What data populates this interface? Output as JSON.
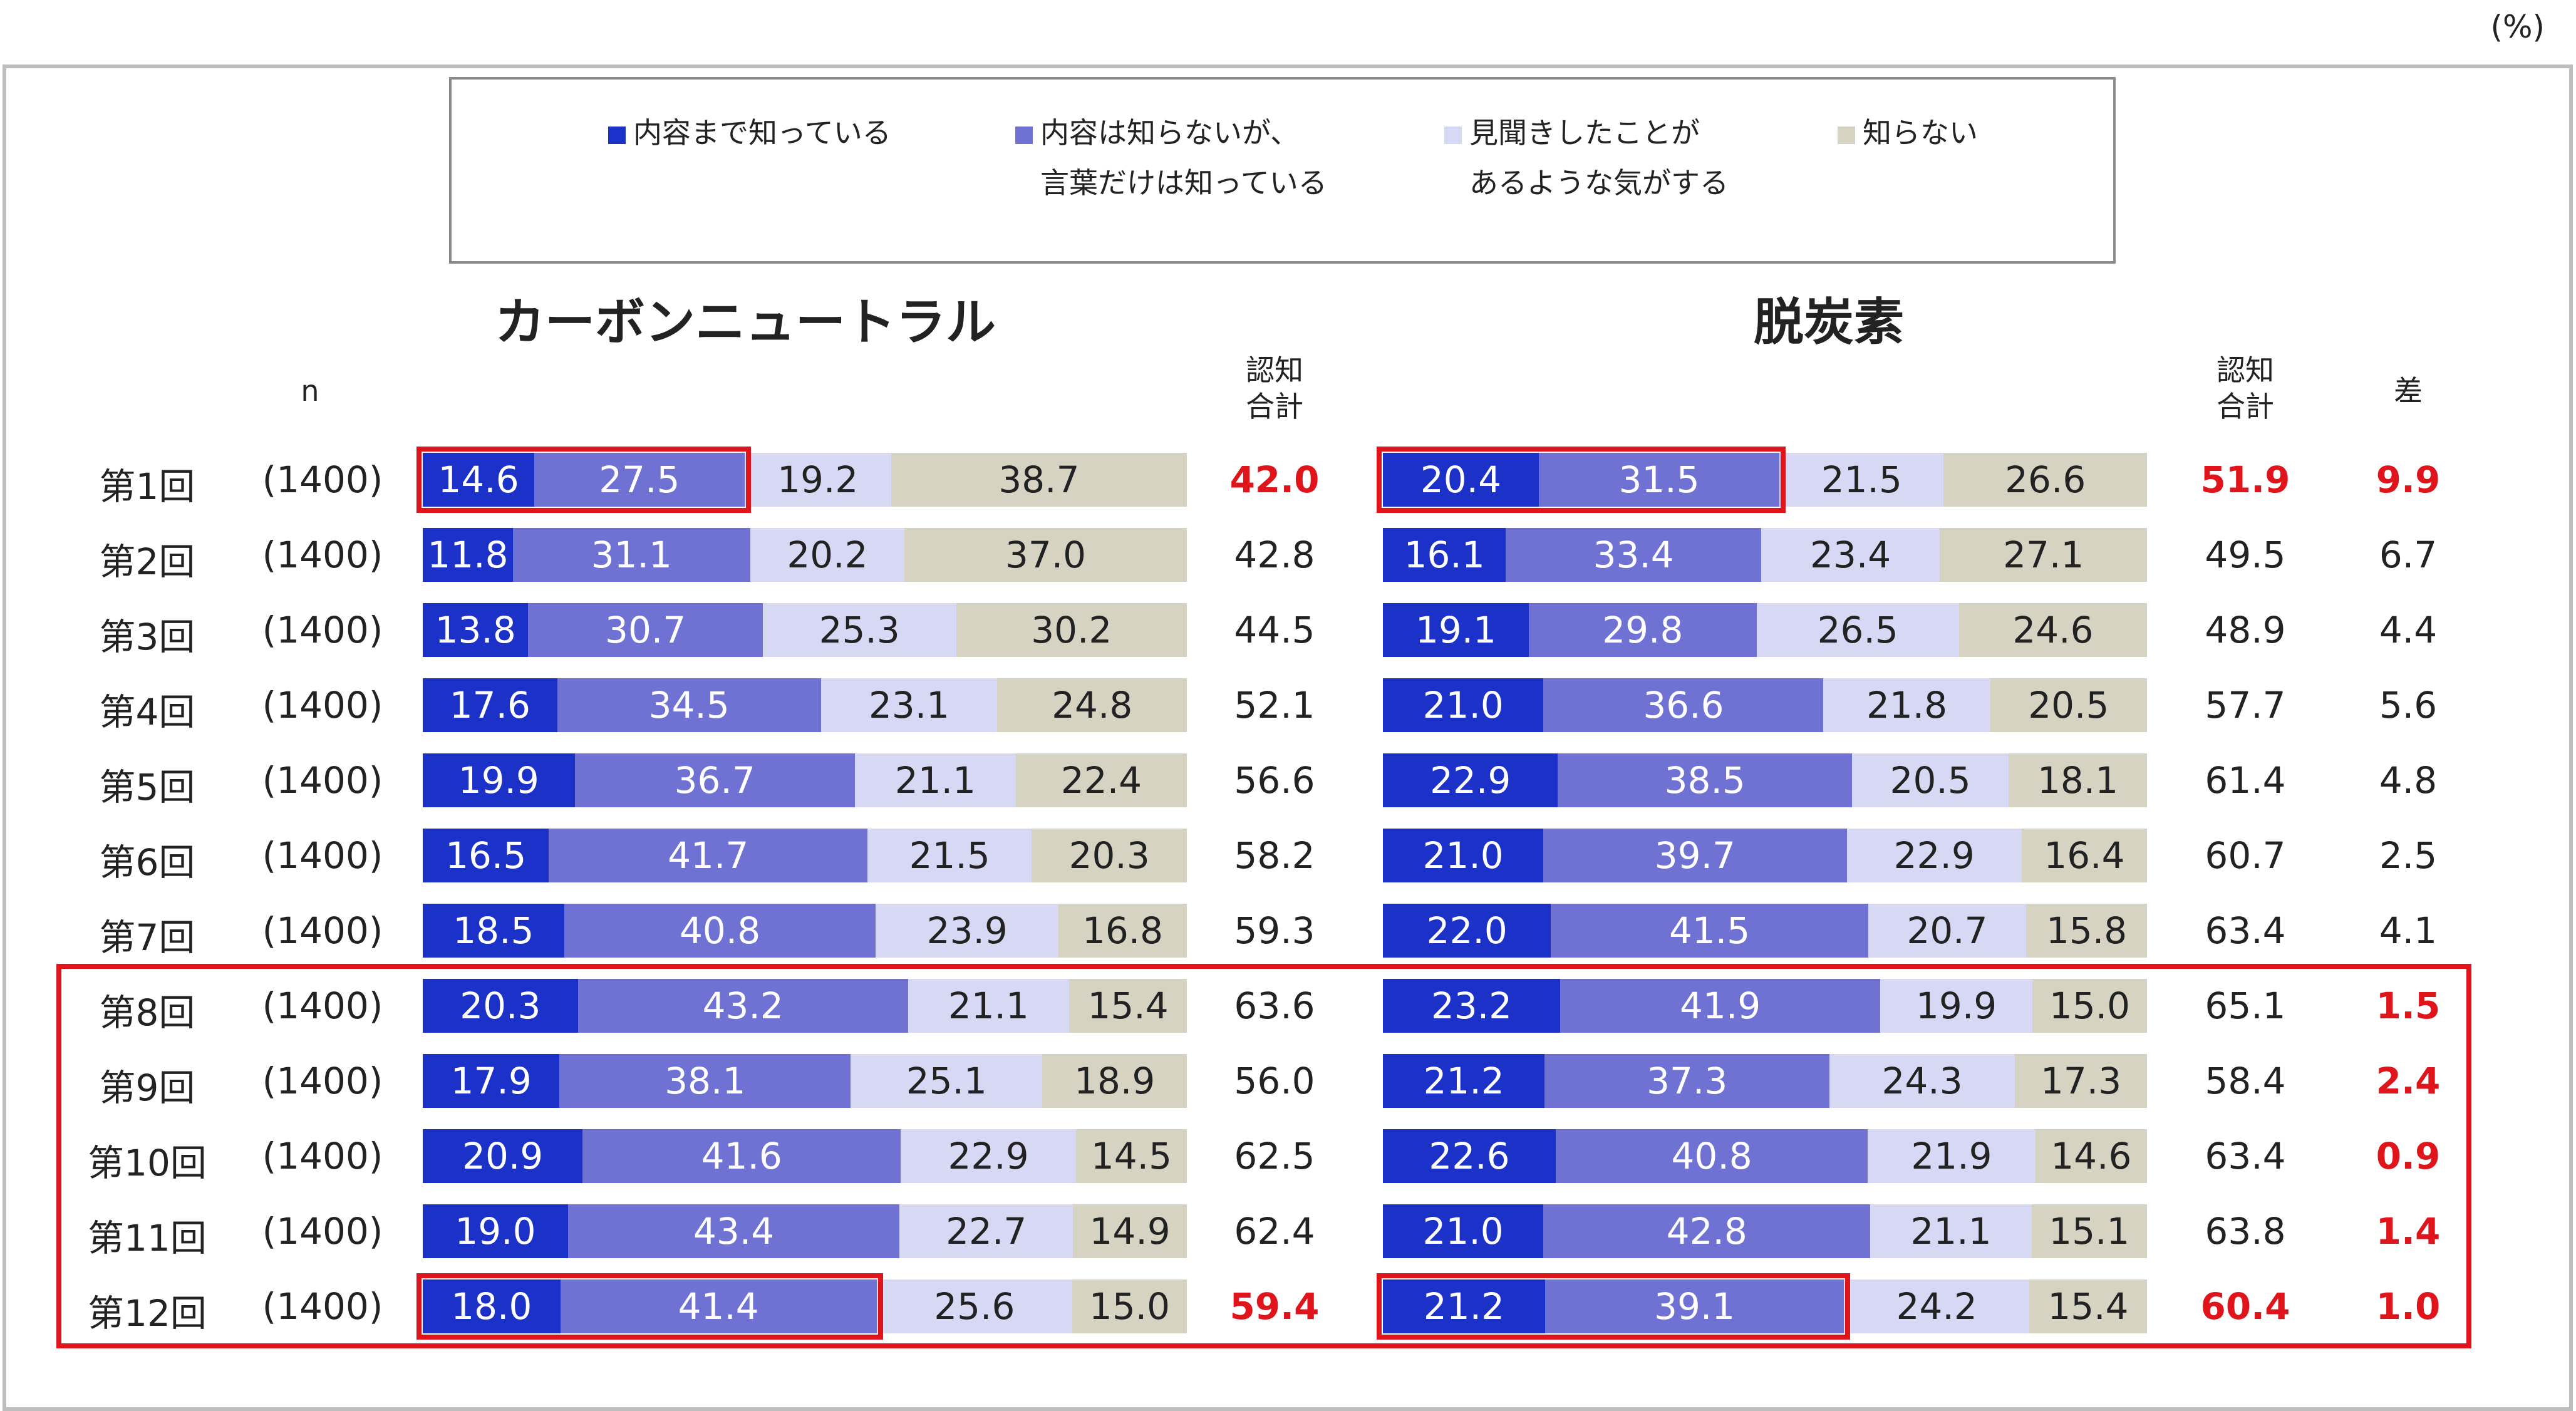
{
  "unit_label": "(%)",
  "legend": [
    {
      "line1": "内容まで知っている",
      "line2": "",
      "color": "#1c31c8"
    },
    {
      "line1": "内容は知らないが、",
      "line2": "言葉だけは知っている",
      "color": "#6f72d3"
    },
    {
      "line1": "見聞きしたことが",
      "line2": "あるような気がする",
      "color": "#d7d8f3"
    },
    {
      "line1": "知らない",
      "line2": "",
      "color": "#d6d3c3"
    }
  ],
  "headers": {
    "n": "n",
    "left_title": "カーボンニュートラル",
    "right_title": "脱炭素",
    "recog_left": "認知合計",
    "recog_right": "認知合計",
    "diff": "差"
  },
  "chart_data": {
    "type": "bar",
    "stacked": true,
    "orientation": "horizontal",
    "unit": "%",
    "categories": [
      "第1回",
      "第2回",
      "第3回",
      "第4回",
      "第5回",
      "第6回",
      "第7回",
      "第8回",
      "第9回",
      "第10回",
      "第11回",
      "第12回"
    ],
    "n": [
      "(1400)",
      "(1400)",
      "(1400)",
      "(1400)",
      "(1400)",
      "(1400)",
      "(1400)",
      "(1400)",
      "(1400)",
      "(1400)",
      "(1400)",
      "(1400)"
    ],
    "panels": [
      {
        "title": "カーボンニュートラル",
        "series": [
          {
            "name": "内容まで知っている",
            "values": [
              14.6,
              11.8,
              13.8,
              17.6,
              19.9,
              16.5,
              18.5,
              20.3,
              17.9,
              20.9,
              19.0,
              18.0
            ]
          },
          {
            "name": "内容は知らないが、言葉だけは知っている",
            "values": [
              27.5,
              31.1,
              30.7,
              34.5,
              36.7,
              41.7,
              40.8,
              43.2,
              38.1,
              41.6,
              43.4,
              41.4
            ]
          },
          {
            "name": "見聞きしたことがあるような気がする",
            "values": [
              19.2,
              20.2,
              25.3,
              23.1,
              21.1,
              21.5,
              23.9,
              21.1,
              25.1,
              22.9,
              22.7,
              25.6
            ]
          },
          {
            "name": "知らない",
            "values": [
              38.7,
              37.0,
              30.2,
              24.8,
              22.4,
              20.3,
              16.8,
              15.4,
              18.9,
              14.5,
              14.9,
              15.0
            ]
          }
        ],
        "recognition_total": [
          "42.0",
          "42.8",
          "44.5",
          "52.1",
          "56.6",
          "58.2",
          "59.3",
          "63.6",
          "56.0",
          "62.5",
          "62.4",
          "59.4"
        ]
      },
      {
        "title": "脱炭素",
        "series": [
          {
            "name": "内容まで知っている",
            "values": [
              20.4,
              16.1,
              19.1,
              21.0,
              22.9,
              21.0,
              22.0,
              23.2,
              21.2,
              22.6,
              21.0,
              21.2
            ]
          },
          {
            "name": "内容は知らないが、言葉だけは知っている",
            "values": [
              31.5,
              33.4,
              29.8,
              36.6,
              38.5,
              39.7,
              41.5,
              41.9,
              37.3,
              40.8,
              42.8,
              39.1
            ]
          },
          {
            "name": "見聞きしたことがあるような気がする",
            "values": [
              21.5,
              23.4,
              26.5,
              21.8,
              20.5,
              22.9,
              20.7,
              19.9,
              24.3,
              21.9,
              21.1,
              24.2
            ]
          },
          {
            "name": "知らない",
            "values": [
              26.6,
              27.1,
              24.6,
              20.5,
              18.1,
              16.4,
              15.8,
              15.0,
              17.3,
              14.6,
              15.1,
              15.4
            ]
          }
        ],
        "recognition_total": [
          "51.9",
          "49.5",
          "48.9",
          "57.7",
          "61.4",
          "60.7",
          "63.4",
          "65.1",
          "58.4",
          "63.4",
          "63.8",
          "60.4"
        ]
      }
    ],
    "difference": [
      "9.9",
      "6.7",
      "4.4",
      "5.6",
      "4.8",
      "2.5",
      "4.1",
      "1.5",
      "2.4",
      "0.9",
      "1.4",
      "1.0"
    ],
    "highlight_rows": [
      0,
      11
    ],
    "highlight_diff_rows": [
      0,
      7,
      8,
      9,
      10,
      11
    ],
    "highlight_group_rows": [
      7,
      8,
      9,
      10,
      11
    ],
    "colors": {
      "accent_red": "#e0151c",
      "seg_text_dark": "#ffffff",
      "seg_text_light": "#222222"
    }
  }
}
